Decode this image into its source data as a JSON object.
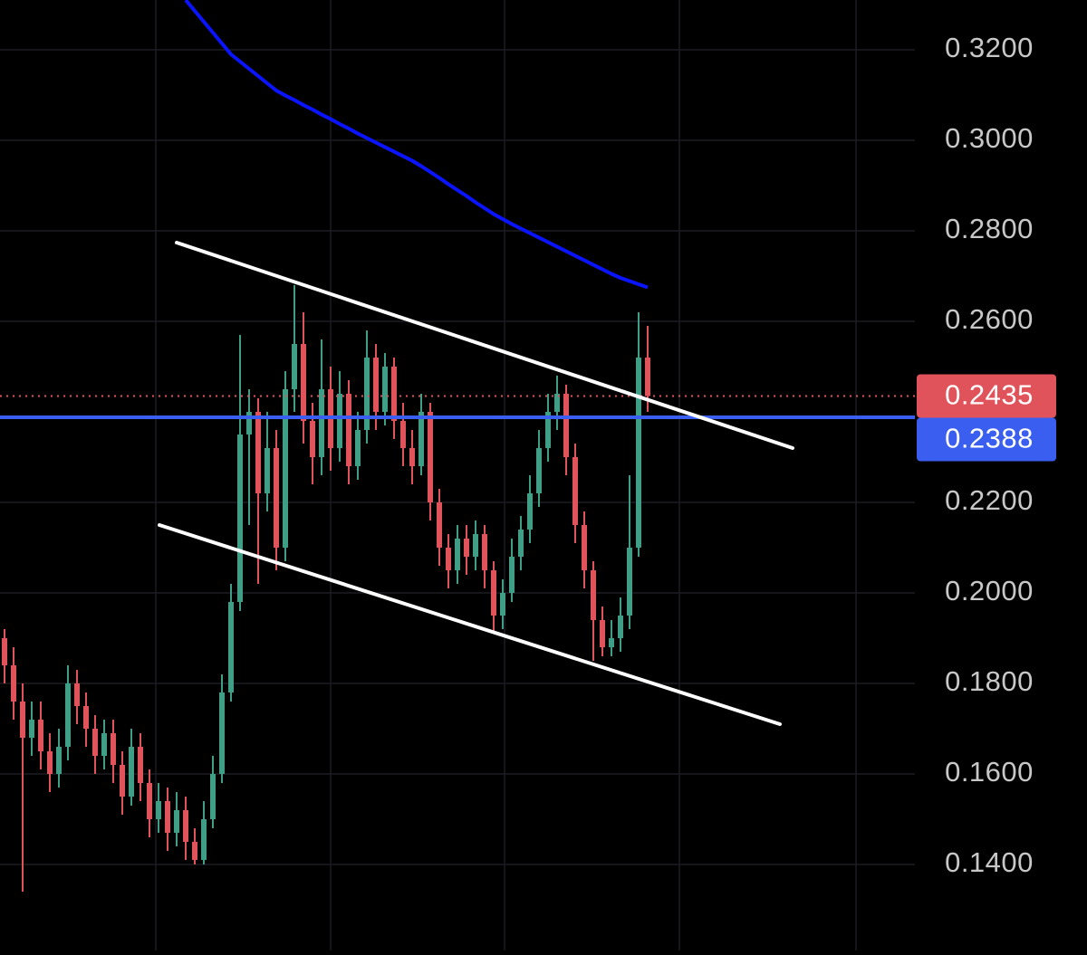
{
  "chart_data": {
    "type": "candlestick",
    "up_color": "#3f9e86",
    "down_color": "#e0535b",
    "ylim": [
      0.121,
      0.331
    ],
    "yticks": [
      {
        "value": 0.14,
        "label": "0.1400"
      },
      {
        "value": 0.16,
        "label": "0.1600"
      },
      {
        "value": 0.18,
        "label": "0.1800"
      },
      {
        "value": 0.2,
        "label": "0.2000"
      },
      {
        "value": 0.22,
        "label": "0.2200"
      },
      {
        "value": 0.26,
        "label": "0.2600"
      },
      {
        "value": 0.28,
        "label": "0.2800"
      },
      {
        "value": 0.3,
        "label": "0.3000"
      },
      {
        "value": 0.32,
        "label": "0.3200"
      }
    ],
    "grid": true,
    "open": [
      0.19,
      0.184,
      0.176,
      0.168,
      0.172,
      0.165,
      0.16,
      0.166,
      0.18,
      0.175,
      0.17,
      0.164,
      0.169,
      0.162,
      0.155,
      0.166,
      0.158,
      0.15,
      0.154,
      0.147,
      0.152,
      0.145,
      0.141,
      0.15,
      0.16,
      0.178,
      0.198,
      0.235,
      0.24,
      0.222,
      0.232,
      0.21,
      0.245,
      0.255,
      0.238,
      0.23,
      0.245,
      0.232,
      0.244,
      0.228,
      0.236,
      0.252,
      0.24,
      0.25,
      0.238,
      0.232,
      0.228,
      0.24,
      0.22,
      0.21,
      0.205,
      0.212,
      0.208,
      0.213,
      0.205,
      0.195,
      0.2,
      0.208,
      0.214,
      0.222,
      0.232,
      0.24,
      0.244,
      0.23,
      0.215,
      0.205,
      0.194,
      0.188,
      0.19,
      0.195,
      0.21,
      0.252
    ],
    "high": [
      0.192,
      0.188,
      0.18,
      0.176,
      0.176,
      0.169,
      0.17,
      0.184,
      0.183,
      0.178,
      0.173,
      0.172,
      0.172,
      0.165,
      0.17,
      0.169,
      0.161,
      0.158,
      0.157,
      0.156,
      0.155,
      0.148,
      0.154,
      0.164,
      0.182,
      0.202,
      0.257,
      0.245,
      0.243,
      0.24,
      0.236,
      0.249,
      0.268,
      0.262,
      0.242,
      0.256,
      0.25,
      0.249,
      0.247,
      0.24,
      0.258,
      0.255,
      0.253,
      0.252,
      0.242,
      0.236,
      0.244,
      0.242,
      0.223,
      0.213,
      0.215,
      0.215,
      0.216,
      0.215,
      0.207,
      0.203,
      0.212,
      0.217,
      0.226,
      0.236,
      0.244,
      0.248,
      0.246,
      0.233,
      0.218,
      0.207,
      0.197,
      0.194,
      0.199,
      0.226,
      0.262,
      0.259
    ],
    "low": [
      0.18,
      0.172,
      0.134,
      0.164,
      0.161,
      0.156,
      0.157,
      0.163,
      0.171,
      0.166,
      0.16,
      0.161,
      0.158,
      0.151,
      0.153,
      0.154,
      0.146,
      0.147,
      0.143,
      0.144,
      0.141,
      0.14,
      0.14,
      0.148,
      0.158,
      0.176,
      0.196,
      0.215,
      0.202,
      0.218,
      0.205,
      0.207,
      0.24,
      0.233,
      0.224,
      0.226,
      0.227,
      0.229,
      0.224,
      0.225,
      0.233,
      0.236,
      0.237,
      0.234,
      0.228,
      0.224,
      0.226,
      0.216,
      0.206,
      0.201,
      0.202,
      0.204,
      0.205,
      0.201,
      0.191,
      0.192,
      0.198,
      0.205,
      0.211,
      0.219,
      0.229,
      0.236,
      0.226,
      0.211,
      0.201,
      0.185,
      0.186,
      0.186,
      0.187,
      0.192,
      0.208,
      0.24
    ],
    "close": [
      0.184,
      0.176,
      0.168,
      0.172,
      0.165,
      0.16,
      0.166,
      0.18,
      0.175,
      0.17,
      0.164,
      0.169,
      0.162,
      0.155,
      0.166,
      0.158,
      0.15,
      0.154,
      0.147,
      0.152,
      0.145,
      0.141,
      0.15,
      0.16,
      0.178,
      0.198,
      0.235,
      0.24,
      0.222,
      0.232,
      0.21,
      0.245,
      0.255,
      0.238,
      0.23,
      0.245,
      0.232,
      0.244,
      0.228,
      0.236,
      0.252,
      0.24,
      0.25,
      0.238,
      0.232,
      0.228,
      0.24,
      0.22,
      0.21,
      0.205,
      0.212,
      0.208,
      0.213,
      0.205,
      0.195,
      0.2,
      0.208,
      0.214,
      0.222,
      0.232,
      0.24,
      0.244,
      0.23,
      0.215,
      0.205,
      0.194,
      0.188,
      0.19,
      0.195,
      0.21,
      0.252,
      0.2435
    ],
    "overlay": {
      "color": "#0a14ff",
      "values": [
        null,
        null,
        null,
        null,
        null,
        null,
        null,
        null,
        null,
        null,
        null,
        null,
        null,
        null,
        null,
        null,
        null,
        null,
        null,
        null,
        0.331,
        0.3286,
        0.3262,
        0.3238,
        0.3214,
        0.319,
        0.3174,
        0.3158,
        0.3142,
        0.3126,
        0.311,
        0.3099,
        0.3089,
        0.3078,
        0.3068,
        0.3057,
        0.3047,
        0.3036,
        0.3026,
        0.3015,
        0.3005,
        0.2995,
        0.2985,
        0.2975,
        0.2965,
        0.2955,
        0.2943,
        0.293,
        0.2917,
        0.2903,
        0.289,
        0.2877,
        0.2863,
        0.285,
        0.2837,
        0.2826,
        0.2815,
        0.2805,
        0.2795,
        0.2785,
        0.2775,
        0.2765,
        0.2755,
        0.2745,
        0.2735,
        0.2725,
        0.2715,
        0.2705,
        0.2696,
        0.2689,
        0.2682,
        0.2675
      ]
    },
    "price_lines": [
      {
        "value": 0.2435,
        "color": "#e0535b",
        "style": "dotted"
      },
      {
        "value": 0.2388,
        "color": "#3a5ef0",
        "style": "solid"
      }
    ]
  }
}
